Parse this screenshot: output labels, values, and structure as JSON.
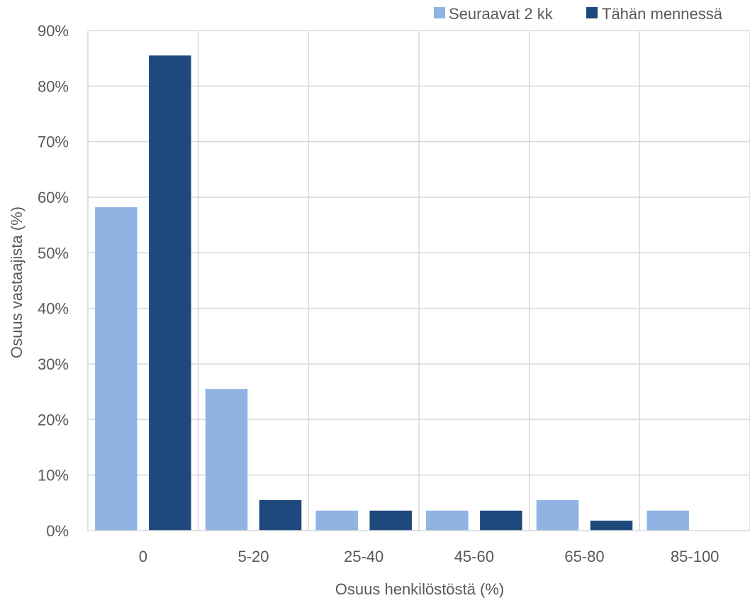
{
  "chart_data": {
    "type": "bar",
    "categories": [
      "0",
      "5-20",
      "25-40",
      "45-60",
      "65-80",
      "85-100"
    ],
    "series": [
      {
        "name": "Seuraavat 2 kk",
        "color": "#8FB4E3",
        "values": [
          58.2,
          25.5,
          3.6,
          3.6,
          5.5,
          3.6
        ]
      },
      {
        "name": "Tähän mennessä",
        "color": "#1F497D",
        "values": [
          85.5,
          5.5,
          3.6,
          3.6,
          1.8,
          0
        ]
      }
    ],
    "title": "",
    "xlabel": "Osuus henkilöstöstä (%)",
    "ylabel": "Osuus vastaajista (%)",
    "ylim": [
      0,
      90
    ],
    "yticks": [
      "0%",
      "10%",
      "20%",
      "30%",
      "40%",
      "50%",
      "60%",
      "70%",
      "80%",
      "90%"
    ],
    "grid": true,
    "legend_position": "top-right"
  }
}
